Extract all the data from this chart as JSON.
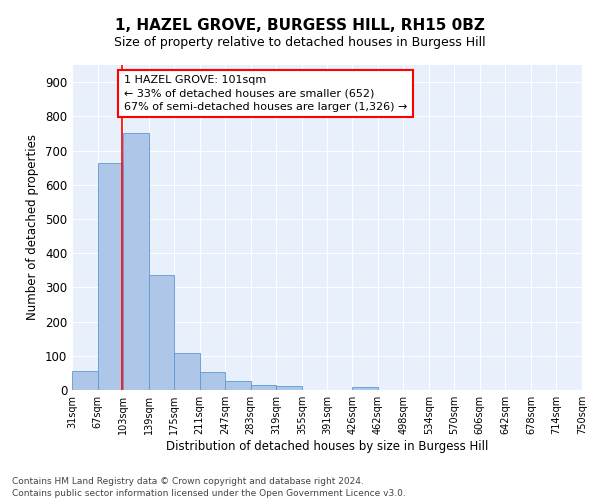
{
  "title1": "1, HAZEL GROVE, BURGESS HILL, RH15 0BZ",
  "title2": "Size of property relative to detached houses in Burgess Hill",
  "xlabel": "Distribution of detached houses by size in Burgess Hill",
  "ylabel": "Number of detached properties",
  "footnote1": "Contains HM Land Registry data © Crown copyright and database right 2024.",
  "footnote2": "Contains public sector information licensed under the Open Government Licence v3.0.",
  "annotation_line1": "1 HAZEL GROVE: 101sqm",
  "annotation_line2": "← 33% of detached houses are smaller (652)",
  "annotation_line3": "67% of semi-detached houses are larger (1,326) →",
  "bar_color": "#aec6e8",
  "bar_edge_color": "#5b9bd5",
  "property_line_x": 101,
  "bin_edges": [
    31,
    67,
    103,
    139,
    175,
    211,
    247,
    283,
    319,
    355,
    391,
    426,
    462,
    498,
    534,
    570,
    606,
    642,
    678,
    714,
    750
  ],
  "bin_labels": [
    "31sqm",
    "67sqm",
    "103sqm",
    "139sqm",
    "175sqm",
    "211sqm",
    "247sqm",
    "283sqm",
    "319sqm",
    "355sqm",
    "391sqm",
    "426sqm",
    "462sqm",
    "498sqm",
    "534sqm",
    "570sqm",
    "606sqm",
    "642sqm",
    "678sqm",
    "714sqm",
    "750sqm"
  ],
  "counts": [
    55,
    665,
    750,
    335,
    108,
    52,
    25,
    16,
    13,
    0,
    0,
    8,
    0,
    0,
    0,
    0,
    0,
    0,
    0,
    0
  ],
  "ylim": [
    0,
    950
  ],
  "yticks": [
    0,
    100,
    200,
    300,
    400,
    500,
    600,
    700,
    800,
    900
  ],
  "background_color": "#e8f0fb",
  "grid_color": "#ffffff",
  "title_fontsize": 11,
  "subtitle_fontsize": 9,
  "footnote_fontsize": 6.5,
  "annotation_fontsize": 8,
  "ylabel_fontsize": 8.5,
  "xlabel_fontsize": 8.5,
  "ytick_fontsize": 8.5,
  "xtick_fontsize": 7
}
